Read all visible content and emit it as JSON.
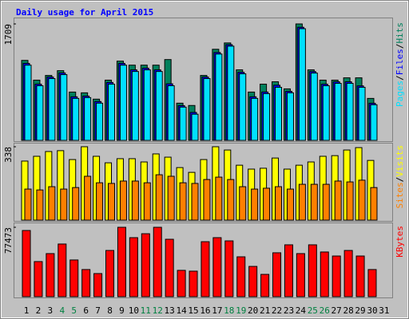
{
  "chart_data": [
    {
      "type": "bar",
      "title": "Daily usage for April 2015",
      "legend_separator": "/",
      "ylim": [
        0,
        1709
      ],
      "yticks": [
        1709
      ],
      "series": [
        {
          "name": "Hits",
          "color": "#00805c",
          "values": [
            1174,
            884,
            953,
            1023,
            709,
            698,
            605,
            884,
            1163,
            1104,
            1104,
            1104,
            1186,
            546,
            512,
            953,
            1337,
            1430,
            1035,
            709,
            825,
            860,
            756,
            1709,
            1035,
            884,
            884,
            918,
            918,
            616,
            0
          ]
        },
        {
          "name": "Files",
          "color": "#0000ff",
          "values": [
            1130,
            825,
            930,
            990,
            640,
            650,
            570,
            850,
            1130,
            1035,
            1060,
            1035,
            830,
            510,
            410,
            930,
            1290,
            1405,
            1000,
            640,
            710,
            810,
            720,
            1660,
            1010,
            825,
            860,
            860,
            800,
            545,
            0
          ]
        },
        {
          "name": "Pages",
          "color": "#00e0ff",
          "values": [
            1104,
            802,
            907,
            965,
            616,
            628,
            546,
            825,
            1104,
            1011,
            1035,
            1011,
            802,
            488,
            384,
            907,
            1267,
            1383,
            977,
            616,
            686,
            779,
            698,
            1639,
            988,
            802,
            837,
            837,
            779,
            523,
            0
          ]
        }
      ]
    },
    {
      "type": "bar",
      "ylim": [
        0,
        338
      ],
      "yticks": [
        338
      ],
      "series": [
        {
          "name": "Visits",
          "color": "#ffff00",
          "values": [
            272,
            294,
            316,
            320,
            279,
            338,
            294,
            264,
            283,
            283,
            268,
            305,
            290,
            242,
            220,
            279,
            338,
            323,
            253,
            235,
            239,
            286,
            235,
            253,
            268,
            294,
            297,
            323,
            334,
            275,
            0
          ]
        },
        {
          "name": "Sites",
          "color": "#ff8000",
          "values": [
            143,
            139,
            154,
            143,
            150,
            202,
            172,
            169,
            180,
            180,
            172,
            209,
            202,
            172,
            169,
            187,
            198,
            187,
            154,
            143,
            147,
            154,
            143,
            165,
            165,
            165,
            180,
            176,
            184,
            150,
            0
          ]
        }
      ]
    },
    {
      "type": "bar",
      "ylim": [
        0,
        77473
      ],
      "yticks": [
        77473
      ],
      "categories": [
        "1",
        "2",
        "3",
        "4",
        "5",
        "6",
        "7",
        "8",
        "9",
        "10",
        "11",
        "12",
        "13",
        "14",
        "15",
        "16",
        "17",
        "18",
        "19",
        "20",
        "21",
        "22",
        "23",
        "24",
        "25",
        "26",
        "27",
        "28",
        "29",
        "30",
        "31"
      ],
      "category_colors": [
        "#000000",
        "#000000",
        "#000000",
        "#008040",
        "#008040",
        "#000000",
        "#000000",
        "#000000",
        "#000000",
        "#000000",
        "#008040",
        "#008040",
        "#000000",
        "#000000",
        "#000000",
        "#000000",
        "#000000",
        "#008040",
        "#008040",
        "#000000",
        "#000000",
        "#000000",
        "#000000",
        "#000000",
        "#008040",
        "#008040",
        "#000000",
        "#000000",
        "#000000",
        "#000000",
        "#000000"
      ],
      "series": [
        {
          "name": "KBytes",
          "color": "#ff0000",
          "values": [
            73900,
            39200,
            48100,
            58800,
            41000,
            30300,
            25800,
            51600,
            77473,
            65900,
            70300,
            77473,
            64100,
            29400,
            28500,
            61400,
            65900,
            62300,
            44500,
            33800,
            24900,
            49000,
            57900,
            48100,
            57900,
            49900,
            45400,
            51600,
            45400,
            30300,
            0
          ]
        }
      ]
    }
  ]
}
